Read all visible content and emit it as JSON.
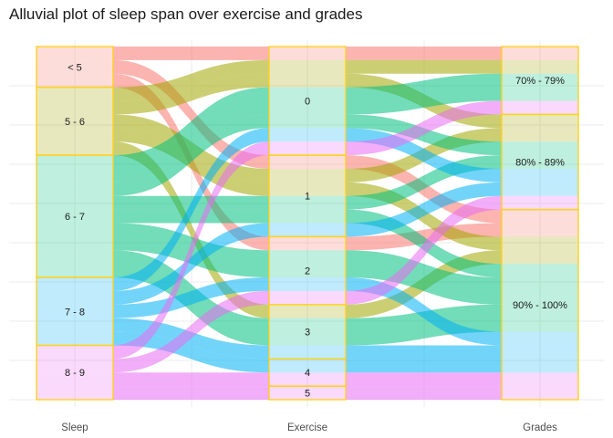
{
  "chart_data": {
    "type": "alluvial",
    "title": "Alluvial plot of sleep span over exercise and grades",
    "axes": [
      "Sleep",
      "Exercise",
      "Grades"
    ],
    "axis_categories": {
      "Sleep": [
        "< 5",
        "5 - 6",
        "6 - 7",
        "7 - 8",
        "8 - 9"
      ],
      "Exercise": [
        "0",
        "1",
        "2",
        "3",
        "4",
        "5"
      ],
      "Grades": [
        "70% - 79%",
        "80% - 89%",
        "90% - 100%"
      ]
    },
    "fill_by": "Sleep",
    "colors": {
      "< 5": "#f8766d",
      "5 - 6": "#a3a500",
      "6 - 7": "#00bf7d",
      "7 - 8": "#00b0f6",
      "8 - 9": "#e76bf3"
    },
    "stratum_fill": "#ffffff",
    "stratum_border": "#ffd21e",
    "flows": [
      {
        "sleep": "< 5",
        "exercise": "0",
        "grades": "70% - 79%",
        "count": 1
      },
      {
        "sleep": "< 5",
        "exercise": "1",
        "grades": "90% - 100%",
        "count": 1
      },
      {
        "sleep": "< 5",
        "exercise": "2",
        "grades": "90% - 100%",
        "count": 1
      },
      {
        "sleep": "5 - 6",
        "exercise": "0",
        "grades": "70% - 79%",
        "count": 1
      },
      {
        "sleep": "5 - 6",
        "exercise": "0",
        "grades": "80% - 89%",
        "count": 1
      },
      {
        "sleep": "5 - 6",
        "exercise": "1",
        "grades": "80% - 89%",
        "count": 1
      },
      {
        "sleep": "5 - 6",
        "exercise": "1",
        "grades": "90% - 100%",
        "count": 1
      },
      {
        "sleep": "5 - 6",
        "exercise": "3",
        "grades": "90% - 100%",
        "count": 1
      },
      {
        "sleep": "6 - 7",
        "exercise": "0",
        "grades": "70% - 79%",
        "count": 2
      },
      {
        "sleep": "6 - 7",
        "exercise": "0",
        "grades": "80% - 89%",
        "count": 1
      },
      {
        "sleep": "6 - 7",
        "exercise": "1",
        "grades": "80% - 89%",
        "count": 1
      },
      {
        "sleep": "6 - 7",
        "exercise": "1",
        "grades": "90% - 100%",
        "count": 1
      },
      {
        "sleep": "6 - 7",
        "exercise": "2",
        "grades": "90% - 100%",
        "count": 2
      },
      {
        "sleep": "6 - 7",
        "exercise": "3",
        "grades": "90% - 100%",
        "count": 2
      },
      {
        "sleep": "7 - 8",
        "exercise": "0",
        "grades": "80% - 89%",
        "count": 1
      },
      {
        "sleep": "7 - 8",
        "exercise": "1",
        "grades": "80% - 89%",
        "count": 1
      },
      {
        "sleep": "7 - 8",
        "exercise": "2",
        "grades": "90% - 100%",
        "count": 1
      },
      {
        "sleep": "7 - 8",
        "exercise": "3",
        "grades": "90% - 100%",
        "count": 1
      },
      {
        "sleep": "7 - 8",
        "exercise": "4",
        "grades": "90% - 100%",
        "count": 1
      },
      {
        "sleep": "8 - 9",
        "exercise": "0",
        "grades": "70% - 79%",
        "count": 1
      },
      {
        "sleep": "8 - 9",
        "exercise": "2",
        "grades": "80% - 89%",
        "count": 1
      },
      {
        "sleep": "8 - 9",
        "exercise": "4",
        "grades": "90% - 100%",
        "count": 1
      },
      {
        "sleep": "8 - 9",
        "exercise": "5",
        "grades": "90% - 100%",
        "count": 1
      }
    ]
  }
}
